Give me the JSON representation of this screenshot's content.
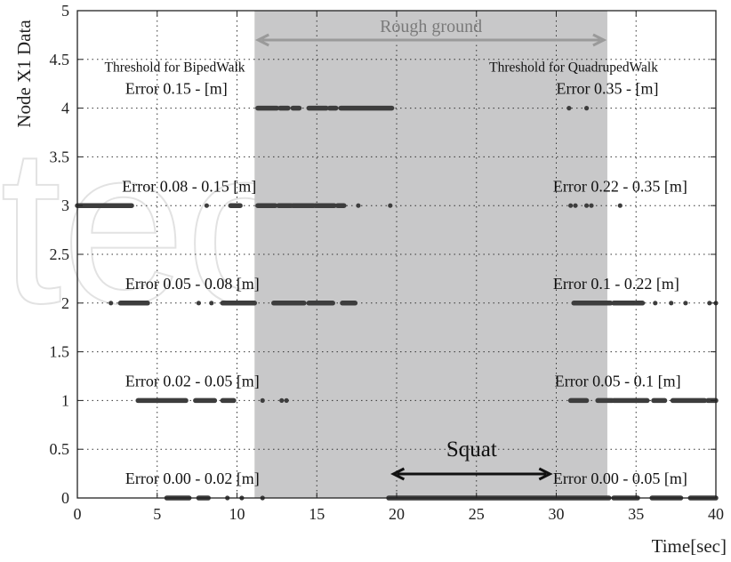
{
  "chart_data": {
    "type": "scatter",
    "xlabel": "Time[sec]",
    "ylabel": "Node X1 Data",
    "xlim": [
      0,
      40
    ],
    "ylim": [
      0,
      5
    ],
    "x_ticks": [
      0,
      5,
      10,
      15,
      20,
      25,
      30,
      35,
      40
    ],
    "y_ticks": [
      0,
      0.5,
      1,
      1.5,
      2,
      2.5,
      3,
      3.5,
      4,
      4.5,
      5
    ],
    "x_tick_labels": [
      "0",
      "5",
      "10",
      "15",
      "20",
      "25",
      "30",
      "35",
      "40"
    ],
    "y_tick_labels": [
      "0",
      "0.5",
      "1",
      "1.5",
      "2",
      "2.5",
      "3",
      "3.5",
      "4",
      "4.5",
      "5"
    ],
    "grid": "dotted",
    "shaded_region": {
      "label": "Rough ground",
      "x_start": 11.1,
      "x_end": 33.2,
      "color": "#c8c8c9"
    },
    "squat": {
      "label": "Squat",
      "x_start": 19.8,
      "x_end": 29.6
    },
    "thresholds": [
      {
        "title": "Threshold for BipedWalk",
        "x": 1.7,
        "y": 4.42
      },
      {
        "title": "Threshold for QuadrupedWalk",
        "x": 25.8,
        "y": 4.42
      }
    ],
    "level_labels": [
      {
        "text": "Error 0.15 -     [m]",
        "x": 3.0,
        "y": 4.2
      },
      {
        "text": "Error 0.08 - 0.15 [m]",
        "x": 2.8,
        "y": 3.2
      },
      {
        "text": "Error 0.05 - 0.08 [m]",
        "x": 3.0,
        "y": 2.2
      },
      {
        "text": "Error 0.02 - 0.05 [m]",
        "x": 3.0,
        "y": 1.2
      },
      {
        "text": "Error 0.00 - 0.02 [m]",
        "x": 3.0,
        "y": 0.2
      },
      {
        "text": "Error 0.35 -     [m]",
        "x": 30.0,
        "y": 4.2
      },
      {
        "text": "Error 0.22 - 0.35 [m]",
        "x": 29.8,
        "y": 3.2
      },
      {
        "text": "Error 0.1 - 0.22 [m]",
        "x": 29.8,
        "y": 2.2
      },
      {
        "text": "Error 0.05 - 0.1 [m]",
        "x": 29.9,
        "y": 1.2
      },
      {
        "text": "Error 0.00 - 0.05 [m]",
        "x": 29.8,
        "y": 0.2
      }
    ],
    "series": [
      {
        "y": 4,
        "segments": [
          [
            11.3,
            12.5
          ],
          [
            12.7,
            13.2
          ],
          [
            13.5,
            13.9
          ],
          [
            14.5,
            15.6
          ],
          [
            15.8,
            16.2
          ],
          [
            16.5,
            19.7
          ]
        ],
        "points": [
          30.8,
          31.9
        ]
      },
      {
        "y": 3,
        "segments": [
          [
            0,
            3.4
          ],
          [
            9.6,
            10.2
          ],
          [
            11.3,
            12.4
          ],
          [
            12.6,
            13.4
          ],
          [
            13.5,
            14.8
          ],
          [
            14.9,
            16.1
          ],
          [
            16.3,
            16.7
          ]
        ],
        "points": [
          8.1,
          17.6,
          19.6,
          30.9,
          31.2,
          31.9,
          32.2,
          34.0
        ]
      },
      {
        "y": 2,
        "segments": [
          [
            2.7,
            4.4
          ],
          [
            9.1,
            11.1
          ],
          [
            12.3,
            14.2
          ],
          [
            14.5,
            16.0
          ],
          [
            16.6,
            17.4
          ],
          [
            31.1,
            33.4
          ],
          [
            33.6,
            34.9
          ],
          [
            35.0,
            35.4
          ]
        ],
        "points": [
          2.1,
          7.6,
          8.4,
          36.2,
          37.2,
          38.1,
          39.6,
          40.0
        ]
      },
      {
        "y": 1,
        "segments": [
          [
            3.8,
            6.8
          ],
          [
            7.4,
            8.6
          ],
          [
            9.1,
            9.8
          ],
          [
            30.9,
            31.9
          ],
          [
            32.6,
            33.5
          ],
          [
            33.6,
            35.7
          ],
          [
            36.1,
            36.8
          ],
          [
            37.3,
            39.3
          ],
          [
            39.5,
            40.0
          ]
        ],
        "points": [
          11.6,
          12.8,
          13.1
        ]
      },
      {
        "y": 0,
        "segments": [
          [
            5.6,
            7.0
          ],
          [
            7.6,
            8.2
          ],
          [
            19.5,
            33.3
          ],
          [
            33.6,
            35.1
          ],
          [
            36.0,
            37.8
          ],
          [
            38.4,
            40.0
          ]
        ],
        "points": [
          9.4,
          10.3,
          11.6
        ]
      }
    ]
  },
  "watermark_text": "tech"
}
